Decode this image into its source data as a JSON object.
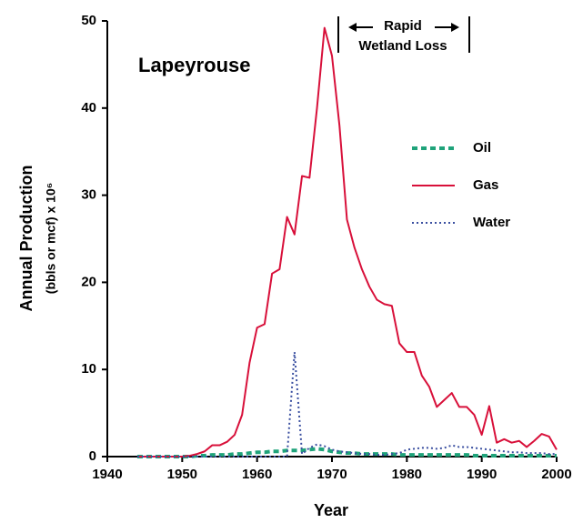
{
  "chart_data": {
    "type": "line",
    "title": "Lapeyrouse",
    "xlabel": "Year",
    "ylabel": "Annual Production",
    "ylabel_sub": "(bbls or mcf) x 10⁶",
    "annotation": [
      "Rapid",
      "Wetland Loss"
    ],
    "annotation_color": "#6a2c91",
    "x": [
      1944,
      1945,
      1946,
      1947,
      1948,
      1949,
      1950,
      1951,
      1952,
      1953,
      1954,
      1955,
      1956,
      1957,
      1958,
      1959,
      1960,
      1961,
      1962,
      1963,
      1964,
      1965,
      1966,
      1967,
      1968,
      1969,
      1970,
      1971,
      1972,
      1973,
      1974,
      1975,
      1976,
      1977,
      1978,
      1979,
      1980,
      1981,
      1982,
      1983,
      1984,
      1985,
      1986,
      1987,
      1988,
      1989,
      1990,
      1991,
      1992,
      1993,
      1994,
      1995,
      1996,
      1997,
      1998,
      1999,
      2000
    ],
    "series": [
      {
        "name": "Oil",
        "color": "#1fa37a",
        "dash": "6,4",
        "width": 4,
        "values": [
          0,
          0,
          0,
          0,
          0,
          0,
          0,
          0,
          0.1,
          0.1,
          0.2,
          0.2,
          0.2,
          0.3,
          0.3,
          0.4,
          0.5,
          0.5,
          0.6,
          0.6,
          0.7,
          0.7,
          0.7,
          0.8,
          0.9,
          0.8,
          0.6,
          0.5,
          0.4,
          0.4,
          0.3,
          0.3,
          0.3,
          0.3,
          0.3,
          0.2,
          0.2,
          0.2,
          0.2,
          0.2,
          0.2,
          0.2,
          0.2,
          0.2,
          0.2,
          0.1,
          0.1,
          0.1,
          0.1,
          0.1,
          0.1,
          0.1,
          0.1,
          0.1,
          0.1,
          0.1,
          0.1
        ]
      },
      {
        "name": "Gas",
        "color": "#d8103a",
        "dash": "none",
        "width": 2,
        "values": [
          0,
          0,
          0,
          0,
          0,
          0,
          0,
          0.1,
          0.3,
          0.6,
          1.3,
          1.3,
          1.7,
          2.5,
          4.8,
          10.8,
          14.8,
          15.2,
          21,
          21.5,
          27.5,
          25.5,
          32.2,
          32,
          40,
          49.2,
          46,
          38,
          27.2,
          24,
          21.5,
          19.5,
          18,
          17.5,
          17.3,
          13,
          12,
          12,
          9.3,
          8,
          5.7,
          6.5,
          7.3,
          5.7,
          5.7,
          4.8,
          2.5,
          5.8,
          1.6,
          2,
          1.6,
          1.8,
          1.1,
          1.8,
          2.6,
          2.3,
          0.8
        ]
      },
      {
        "name": "Water",
        "color": "#3a4fa0",
        "dash": "2,3",
        "width": 2,
        "values": [
          0,
          0,
          0,
          0,
          0,
          0,
          0,
          0,
          0,
          0,
          0,
          0,
          0,
          0,
          0,
          0,
          0,
          0,
          0,
          0,
          0,
          12,
          0.3,
          1,
          1.4,
          1.2,
          0.8,
          0.6,
          0.5,
          0.4,
          0.3,
          0.3,
          0.2,
          0.2,
          0.3,
          0.4,
          0.8,
          0.9,
          1,
          1,
          0.9,
          1,
          1.3,
          1.1,
          1.1,
          1,
          0.9,
          0.8,
          0.7,
          0.6,
          0.5,
          0.5,
          0.4,
          0.4,
          0.4,
          0.3,
          0.3
        ]
      }
    ],
    "xlim": [
      1940,
      2000
    ],
    "xticks": [
      1940,
      1950,
      1960,
      1970,
      1980,
      1990,
      2000
    ],
    "ylim": [
      0,
      50
    ],
    "yticks": [
      0,
      10,
      20,
      30,
      40,
      50
    ]
  }
}
